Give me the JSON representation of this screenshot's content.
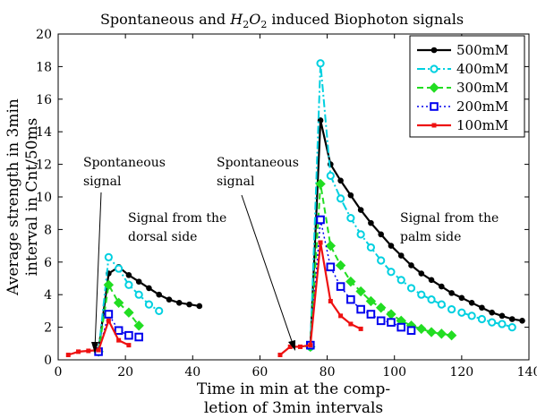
{
  "chart_data": {
    "type": "line",
    "title_main": "Spontaneous and ",
    "title_formula_base": "H",
    "title_formula_sub1": "2",
    "title_formula_mid": "O",
    "title_formula_sub2": "2",
    "title_rest": " induced Biophoton signals",
    "xlabel_line1": "Time in min at the comp-",
    "xlabel_line2": "letion of 3min intervals",
    "ylabel_line1": "Average strength in 3min",
    "ylabel_line2": "interval in Cnt/50ms",
    "xlim": [
      0,
      140
    ],
    "ylim": [
      0,
      20
    ],
    "xticks": [
      0,
      20,
      40,
      60,
      80,
      100,
      120,
      140
    ],
    "yticks": [
      0,
      2,
      4,
      6,
      8,
      10,
      12,
      14,
      16,
      18,
      20
    ],
    "legend_position": "top-right",
    "annotations": [
      {
        "lines": [
          "Spontaneous",
          "signal"
        ]
      },
      {
        "lines": [
          "Spontaneous",
          "signal"
        ]
      },
      {
        "lines": [
          "Signal from the",
          "dorsal side"
        ]
      },
      {
        "lines": [
          "Signal from the",
          "palm side"
        ]
      }
    ],
    "series": [
      {
        "name": "500mM",
        "color": "#000000",
        "marker": "dot",
        "dash": "solid",
        "segments": [
          [
            [
              12,
              0.6
            ],
            [
              15,
              5.3
            ],
            [
              18,
              5.7
            ],
            [
              21,
              5.2
            ],
            [
              24,
              4.8
            ],
            [
              27,
              4.4
            ],
            [
              30,
              4.0
            ],
            [
              33,
              3.7
            ],
            [
              36,
              3.5
            ],
            [
              39,
              3.4
            ],
            [
              42,
              3.3
            ]
          ],
          [
            [
              75,
              0.9
            ],
            [
              78,
              14.7
            ],
            [
              81,
              12.0
            ],
            [
              84,
              11.0
            ],
            [
              87,
              10.1
            ],
            [
              90,
              9.2
            ],
            [
              93,
              8.4
            ],
            [
              96,
              7.7
            ],
            [
              99,
              7.0
            ],
            [
              102,
              6.4
            ],
            [
              105,
              5.8
            ],
            [
              108,
              5.3
            ],
            [
              111,
              4.9
            ],
            [
              114,
              4.5
            ],
            [
              117,
              4.1
            ],
            [
              120,
              3.8
            ],
            [
              123,
              3.5
            ],
            [
              126,
              3.2
            ],
            [
              129,
              2.9
            ],
            [
              132,
              2.7
            ],
            [
              135,
              2.5
            ],
            [
              138,
              2.4
            ]
          ]
        ]
      },
      {
        "name": "400mM",
        "color": "#00d0e0",
        "marker": "circle",
        "dash": "dashdot",
        "segments": [
          [
            [
              12,
              0.5
            ],
            [
              15,
              6.3
            ],
            [
              18,
              5.6
            ],
            [
              21,
              4.6
            ],
            [
              24,
              4.0
            ],
            [
              27,
              3.4
            ],
            [
              30,
              3.0
            ]
          ],
          [
            [
              75,
              0.8
            ],
            [
              78,
              18.2
            ],
            [
              81,
              11.3
            ],
            [
              84,
              9.9
            ],
            [
              87,
              8.7
            ],
            [
              90,
              7.7
            ],
            [
              93,
              6.9
            ],
            [
              96,
              6.1
            ],
            [
              99,
              5.4
            ],
            [
              102,
              4.9
            ],
            [
              105,
              4.4
            ],
            [
              108,
              4.0
            ],
            [
              111,
              3.7
            ],
            [
              114,
              3.4
            ],
            [
              117,
              3.1
            ],
            [
              120,
              2.9
            ],
            [
              123,
              2.7
            ],
            [
              126,
              2.5
            ],
            [
              129,
              2.3
            ],
            [
              132,
              2.2
            ],
            [
              135,
              2.0
            ]
          ]
        ]
      },
      {
        "name": "300mM",
        "color": "#22dd22",
        "marker": "diamond",
        "dash": "dash",
        "segments": [
          [
            [
              12,
              0.5
            ],
            [
              15,
              4.6
            ],
            [
              18,
              3.5
            ],
            [
              21,
              2.9
            ],
            [
              24,
              2.1
            ]
          ],
          [
            [
              75,
              0.8
            ],
            [
              78,
              10.8
            ],
            [
              81,
              7.0
            ],
            [
              84,
              5.8
            ],
            [
              87,
              4.8
            ],
            [
              90,
              4.2
            ],
            [
              93,
              3.6
            ],
            [
              96,
              3.2
            ],
            [
              99,
              2.8
            ],
            [
              102,
              2.4
            ],
            [
              105,
              2.1
            ],
            [
              108,
              1.9
            ],
            [
              111,
              1.7
            ],
            [
              114,
              1.6
            ],
            [
              117,
              1.5
            ]
          ]
        ]
      },
      {
        "name": "200mM",
        "color": "#0000ee",
        "marker": "square",
        "dash": "dot",
        "segments": [
          [
            [
              12,
              0.5
            ],
            [
              15,
              2.8
            ],
            [
              18,
              1.8
            ],
            [
              21,
              1.5
            ],
            [
              24,
              1.4
            ]
          ],
          [
            [
              75,
              0.9
            ],
            [
              78,
              8.6
            ],
            [
              81,
              5.7
            ],
            [
              84,
              4.5
            ],
            [
              87,
              3.7
            ],
            [
              90,
              3.1
            ],
            [
              93,
              2.8
            ],
            [
              96,
              2.4
            ],
            [
              99,
              2.3
            ],
            [
              102,
              2.0
            ],
            [
              105,
              1.8
            ]
          ]
        ]
      },
      {
        "name": "100mM",
        "color": "#ee1111",
        "marker": "dot-small",
        "dash": "solid",
        "segments": [
          [
            [
              3,
              0.3
            ],
            [
              6,
              0.5
            ],
            [
              9,
              0.55
            ],
            [
              12,
              0.6
            ],
            [
              15,
              2.4
            ],
            [
              18,
              1.2
            ],
            [
              21,
              0.9
            ]
          ],
          [
            [
              66,
              0.3
            ],
            [
              69,
              0.8
            ],
            [
              72,
              0.8
            ],
            [
              75,
              0.9
            ],
            [
              78,
              7.2
            ],
            [
              81,
              3.6
            ],
            [
              84,
              2.7
            ],
            [
              87,
              2.2
            ],
            [
              90,
              1.9
            ]
          ]
        ]
      }
    ]
  }
}
